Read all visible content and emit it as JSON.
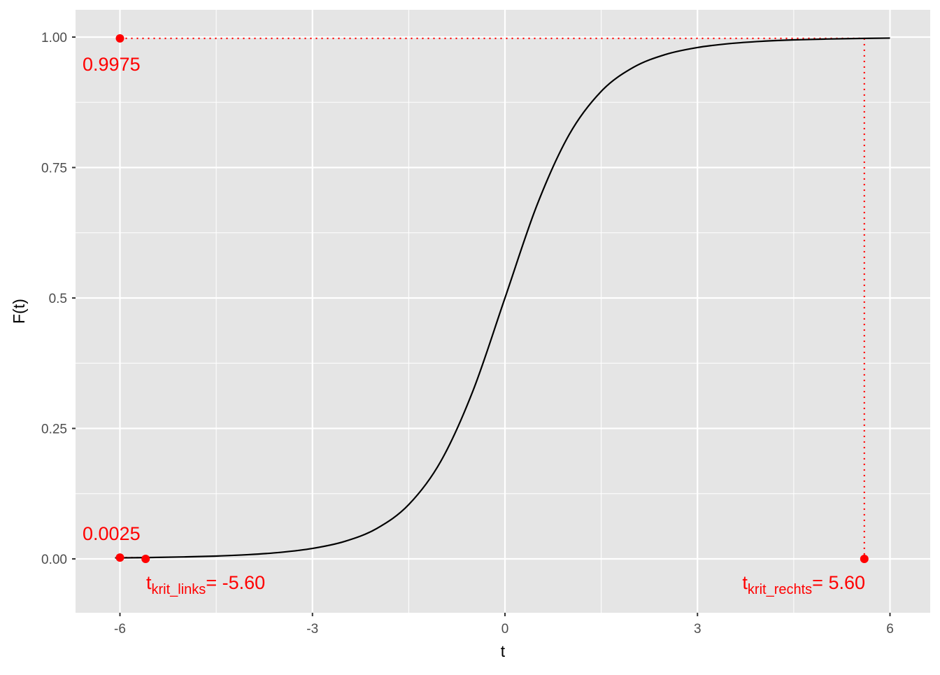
{
  "chart_data": {
    "type": "line",
    "xlabel": "t",
    "ylabel": "F(t)",
    "xlim": [
      -6.7,
      6.55
    ],
    "ylim": [
      -0.1,
      1.05
    ],
    "grid": true,
    "x_ticks": [
      -6,
      -3,
      0,
      3,
      6
    ],
    "x_tick_labels": [
      "-6",
      "-3",
      "0",
      "3",
      "6"
    ],
    "y_ticks": [
      0,
      0.25,
      0.5,
      0.75,
      1
    ],
    "y_tick_labels": [
      "0.00",
      "0.25",
      "0.5",
      "0.75",
      "1.00"
    ],
    "colors": {
      "curve": "#000000",
      "highlight": "#ff0000",
      "panel": "#e5e5e5",
      "grid": "#ffffff"
    },
    "series": [
      {
        "x": [
          -6,
          -5.5,
          -5,
          -4.5,
          -4,
          -3.5,
          -3,
          -2.5,
          -2,
          -1.5,
          -1,
          -0.5,
          0,
          0.5,
          1,
          1.5,
          2,
          2.5,
          3,
          3.5,
          4,
          4.5,
          5,
          5.5,
          6
        ],
        "y": [
          0.0019,
          0.0027,
          0.0038,
          0.0054,
          0.0081,
          0.0125,
          0.02,
          0.0334,
          0.0581,
          0.104,
          0.187,
          0.3217,
          0.5,
          0.6783,
          0.813,
          0.896,
          0.9419,
          0.9666,
          0.98,
          0.9875,
          0.9919,
          0.9946,
          0.9962,
          0.9973,
          0.9981
        ]
      }
    ],
    "points": [
      {
        "x": -6,
        "y": 0.9975
      },
      {
        "x": -6,
        "y": 0.0025
      },
      {
        "x": -5.6,
        "y": 0
      },
      {
        "x": 5.6,
        "y": 0
      }
    ],
    "dotted_lines": [
      {
        "from": [
          -6,
          0.9975
        ],
        "to": [
          5.6,
          0.9975
        ]
      },
      {
        "from": [
          5.6,
          0.9975
        ],
        "to": [
          5.6,
          0
        ]
      },
      {
        "from": [
          -6,
          0.0025
        ],
        "to": [
          -5.6,
          0.0025
        ]
      },
      {
        "from": [
          -5.6,
          0.0025
        ],
        "to": [
          -5.6,
          0
        ]
      }
    ],
    "annotations": {
      "upper_prob": "0.9975",
      "lower_prob": "0.0025",
      "left_crit": {
        "main": "t",
        "sub": "krit_links",
        "value": "= -5.60"
      },
      "right_crit": {
        "main": "t",
        "sub": "krit_rechts",
        "value": "= 5.60"
      }
    }
  }
}
